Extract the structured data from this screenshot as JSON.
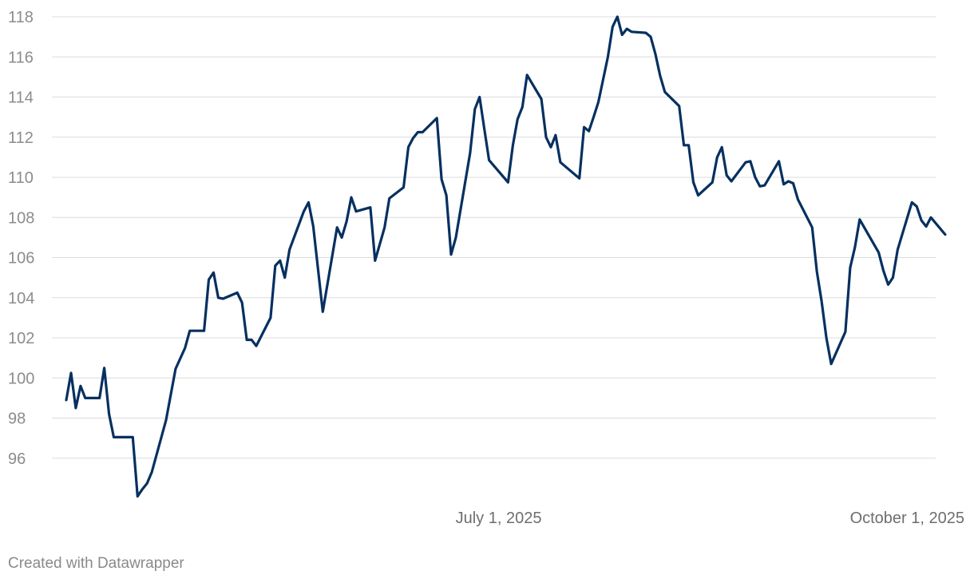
{
  "credit": "Created with Datawrapper",
  "colors": {
    "line": "#063060",
    "grid": "#dcdcdc",
    "tick": "#8c8c8c"
  },
  "chart_data": {
    "type": "line",
    "title": "",
    "xlabel": "",
    "ylabel": "",
    "ylim": [
      94,
      118
    ],
    "xlim": [
      "2025-04-01",
      "2025-10-01"
    ],
    "yticks": [
      96,
      98,
      100,
      102,
      104,
      106,
      108,
      110,
      112,
      114,
      116,
      118
    ],
    "xticks": [
      {
        "date": "2025-07-01",
        "label": "July 1, 2025"
      },
      {
        "date": "2025-10-01",
        "label": "October 1, 2025"
      }
    ],
    "grid": true,
    "legend": "none",
    "series": [
      {
        "points": [
          [
            "2025-04-01",
            98.9
          ],
          [
            "2025-04-02",
            100.25
          ],
          [
            "2025-04-03",
            98.5
          ],
          [
            "2025-04-04",
            99.6
          ],
          [
            "2025-04-05",
            99.0
          ],
          [
            "2025-04-08",
            99.0
          ],
          [
            "2025-04-09",
            100.5
          ],
          [
            "2025-04-10",
            98.2
          ],
          [
            "2025-04-11",
            97.05
          ],
          [
            "2025-04-15",
            97.05
          ],
          [
            "2025-04-16",
            94.1
          ],
          [
            "2025-04-17",
            94.45
          ],
          [
            "2025-04-18",
            94.75
          ],
          [
            "2025-04-19",
            95.3
          ],
          [
            "2025-04-22",
            97.9
          ],
          [
            "2025-04-24",
            100.45
          ],
          [
            "2025-04-26",
            101.5
          ],
          [
            "2025-04-27",
            102.35
          ],
          [
            "2025-04-30",
            102.35
          ],
          [
            "2025-05-01",
            104.9
          ],
          [
            "2025-05-02",
            105.25
          ],
          [
            "2025-05-03",
            104.0
          ],
          [
            "2025-05-04",
            103.95
          ],
          [
            "2025-05-07",
            104.25
          ],
          [
            "2025-05-08",
            103.75
          ],
          [
            "2025-05-09",
            101.9
          ],
          [
            "2025-05-10",
            101.9
          ],
          [
            "2025-05-11",
            101.6
          ],
          [
            "2025-05-14",
            103.0
          ],
          [
            "2025-05-15",
            105.6
          ],
          [
            "2025-05-16",
            105.85
          ],
          [
            "2025-05-17",
            105.0
          ],
          [
            "2025-05-18",
            106.4
          ],
          [
            "2025-05-21",
            108.3
          ],
          [
            "2025-05-22",
            108.75
          ],
          [
            "2025-05-23",
            107.55
          ],
          [
            "2025-05-25",
            103.3
          ],
          [
            "2025-05-28",
            107.5
          ],
          [
            "2025-05-29",
            107.0
          ],
          [
            "2025-05-30",
            107.8
          ],
          [
            "2025-05-31",
            109.0
          ],
          [
            "2025-06-01",
            108.3
          ],
          [
            "2025-06-04",
            108.5
          ],
          [
            "2025-06-05",
            105.85
          ],
          [
            "2025-06-07",
            107.5
          ],
          [
            "2025-06-08",
            108.95
          ],
          [
            "2025-06-11",
            109.5
          ],
          [
            "2025-06-12",
            111.5
          ],
          [
            "2025-06-13",
            111.95
          ],
          [
            "2025-06-14",
            112.25
          ],
          [
            "2025-06-15",
            112.25
          ],
          [
            "2025-06-18",
            112.95
          ],
          [
            "2025-06-19",
            109.9
          ],
          [
            "2025-06-20",
            109.1
          ],
          [
            "2025-06-21",
            106.15
          ],
          [
            "2025-06-22",
            107.0
          ],
          [
            "2025-06-25",
            111.2
          ],
          [
            "2025-06-26",
            113.4
          ],
          [
            "2025-06-27",
            114.0
          ],
          [
            "2025-06-28",
            112.4
          ],
          [
            "2025-06-29",
            110.85
          ],
          [
            "2025-07-03",
            109.75
          ],
          [
            "2025-07-04",
            111.6
          ],
          [
            "2025-07-05",
            112.9
          ],
          [
            "2025-07-06",
            113.5
          ],
          [
            "2025-07-07",
            115.1
          ],
          [
            "2025-07-10",
            113.9
          ],
          [
            "2025-07-11",
            112.0
          ],
          [
            "2025-07-12",
            111.5
          ],
          [
            "2025-07-13",
            112.1
          ],
          [
            "2025-07-14",
            110.75
          ],
          [
            "2025-07-18",
            109.95
          ],
          [
            "2025-07-19",
            112.5
          ],
          [
            "2025-07-20",
            112.3
          ],
          [
            "2025-07-21",
            113.0
          ],
          [
            "2025-07-22",
            113.75
          ],
          [
            "2025-07-24",
            116.0
          ],
          [
            "2025-07-25",
            117.5
          ],
          [
            "2025-07-26",
            118.0
          ],
          [
            "2025-07-27",
            117.1
          ],
          [
            "2025-07-28",
            117.4
          ],
          [
            "2025-07-29",
            117.25
          ],
          [
            "2025-08-01",
            117.2
          ],
          [
            "2025-08-02",
            117.0
          ],
          [
            "2025-08-03",
            116.15
          ],
          [
            "2025-08-04",
            115.05
          ],
          [
            "2025-08-05",
            114.25
          ],
          [
            "2025-08-08",
            113.55
          ],
          [
            "2025-08-09",
            111.6
          ],
          [
            "2025-08-10",
            111.6
          ],
          [
            "2025-08-11",
            109.75
          ],
          [
            "2025-08-12",
            109.1
          ],
          [
            "2025-08-15",
            109.75
          ],
          [
            "2025-08-16",
            111.0
          ],
          [
            "2025-08-17",
            111.5
          ],
          [
            "2025-08-18",
            110.1
          ],
          [
            "2025-08-19",
            109.8
          ],
          [
            "2025-08-22",
            110.75
          ],
          [
            "2025-08-23",
            110.8
          ],
          [
            "2025-08-24",
            110.0
          ],
          [
            "2025-08-25",
            109.55
          ],
          [
            "2025-08-26",
            109.6
          ],
          [
            "2025-08-29",
            110.8
          ],
          [
            "2025-08-30",
            109.65
          ],
          [
            "2025-08-31",
            109.8
          ],
          [
            "2025-09-01",
            109.7
          ],
          [
            "2025-09-02",
            108.9
          ],
          [
            "2025-09-05",
            107.5
          ],
          [
            "2025-09-06",
            105.3
          ],
          [
            "2025-09-07",
            103.8
          ],
          [
            "2025-09-08",
            102.0
          ],
          [
            "2025-09-09",
            100.7
          ],
          [
            "2025-09-12",
            102.3
          ],
          [
            "2025-09-13",
            105.5
          ],
          [
            "2025-09-14",
            106.5
          ],
          [
            "2025-09-15",
            107.9
          ],
          [
            "2025-09-19",
            106.25
          ],
          [
            "2025-09-20",
            105.35
          ],
          [
            "2025-09-21",
            104.65
          ],
          [
            "2025-09-22",
            105.0
          ],
          [
            "2025-09-23",
            106.4
          ],
          [
            "2025-09-26",
            108.75
          ],
          [
            "2025-09-27",
            108.55
          ],
          [
            "2025-09-28",
            107.85
          ],
          [
            "2025-09-29",
            107.55
          ],
          [
            "2025-09-30",
            108.0
          ],
          [
            "2025-10-03",
            107.15
          ]
        ]
      }
    ]
  }
}
